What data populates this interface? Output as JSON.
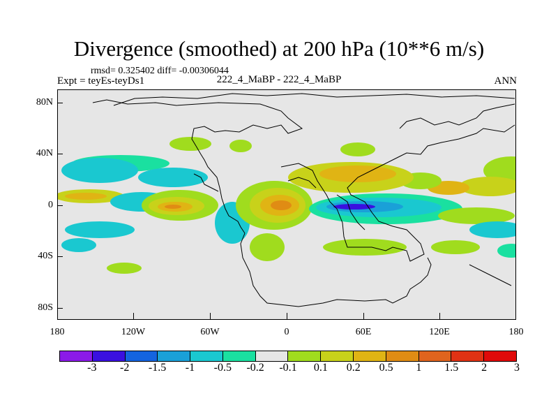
{
  "title": "Divergence (smoothed) at 200 hPa (10**6 m/s)",
  "stats": "rmsd= 0.325402 diff= -0.00306044",
  "expt": "Expt = teyEs-teyDs1",
  "center_label": "222_4_MaBP - 222_4_MaBP",
  "season": "ANN",
  "y_labels": [
    "80N",
    "40N",
    "0",
    "40S",
    "80S"
  ],
  "x_labels": [
    "180",
    "120W",
    "60W",
    "0",
    "60E",
    "120E",
    "180"
  ],
  "colorbar": {
    "colors": [
      "#8b1ae8",
      "#3a10e0",
      "#1464e0",
      "#1aa0d8",
      "#1ac8d0",
      "#1ae0a0",
      "#e6e6e6",
      "#a0dc1e",
      "#c8d21a",
      "#e0b414",
      "#e08c14",
      "#e0641e",
      "#e03214",
      "#e00a0a"
    ],
    "labels": [
      "-3",
      "-2",
      "-1.5",
      "-1",
      "-0.5",
      "-0.2",
      "-0.1",
      "0.1",
      "0.2",
      "0.5",
      "1",
      "1.5",
      "2",
      "3"
    ]
  }
}
